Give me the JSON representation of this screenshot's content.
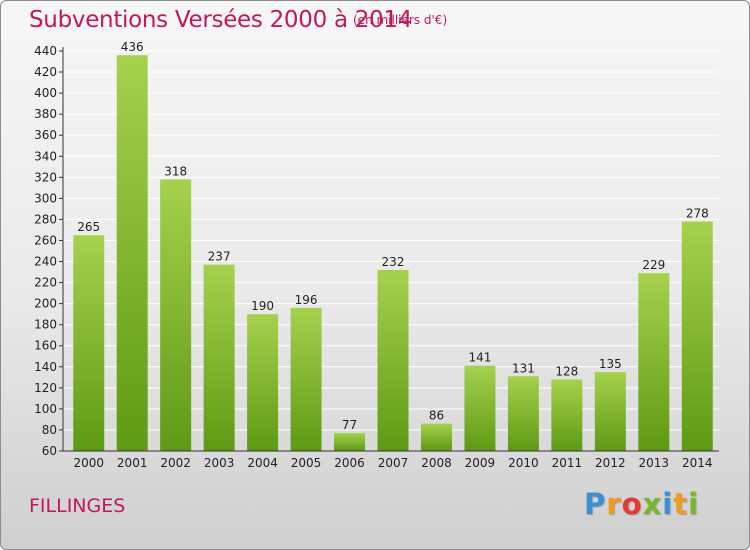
{
  "chart_data": {
    "type": "bar",
    "title": "Subventions Versées 2000 à 2014",
    "subtitle": "(en milliers d'€)",
    "xlabel": "",
    "ylabel": "",
    "categories": [
      "2000",
      "2001",
      "2002",
      "2003",
      "2004",
      "2005",
      "2006",
      "2007",
      "2008",
      "2009",
      "2010",
      "2011",
      "2012",
      "2013",
      "2014"
    ],
    "values": [
      265,
      436,
      318,
      237,
      190,
      196,
      77,
      232,
      86,
      141,
      131,
      128,
      135,
      229,
      278
    ],
    "ylim": [
      60,
      440
    ],
    "yticks": [
      60,
      80,
      100,
      120,
      140,
      160,
      180,
      200,
      220,
      240,
      260,
      280,
      300,
      320,
      340,
      360,
      380,
      400,
      420,
      440
    ],
    "grid": true,
    "legend": "none"
  },
  "place_label": "FILLINGES",
  "logo": {
    "letters": [
      "P",
      "r",
      "o",
      "x",
      "i",
      "t",
      "i"
    ],
    "colors": [
      "#3a8fd6",
      "#f29a1d",
      "#e23b33",
      "#7ab629",
      "#3a8fd6",
      "#f29a1d",
      "#7ab629"
    ]
  },
  "colors": {
    "bar_top": "#a6d14d",
    "bar_bottom": "#5e9a14",
    "title": "#c2185b",
    "grid": "#ffffff",
    "axis": "#333333"
  }
}
